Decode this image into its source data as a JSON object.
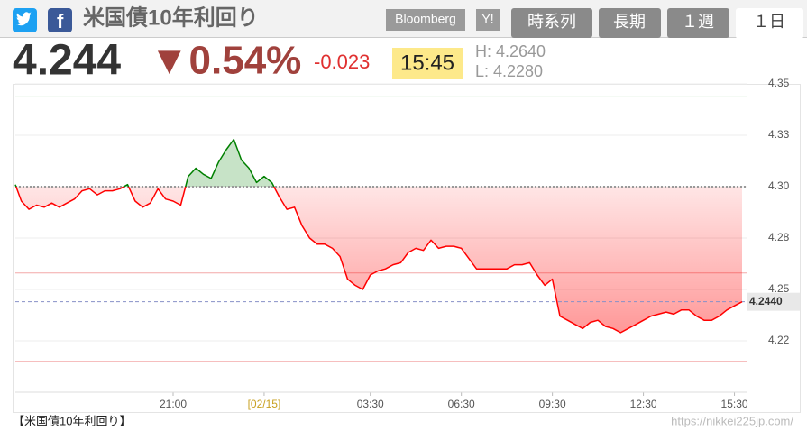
{
  "header": {
    "title": "米国債10年利回り",
    "source_badge": "Bloomberg",
    "yahoo_badge": "Y!",
    "tabs": [
      "時系列",
      "長期",
      "１週",
      "１日"
    ]
  },
  "quote": {
    "price": "4.244",
    "change_pct": "▼0.54%",
    "change": "-0.023",
    "time": "15:45",
    "high": "H: 4.2640",
    "low": "L: 4.2280"
  },
  "chart_data": {
    "type": "line",
    "color": "#ff0000",
    "color_above": "#008000",
    "grid": true,
    "x": [
      -8.2,
      -8,
      -7.75,
      -7.5,
      -7.25,
      -7,
      -6.75,
      -6.5,
      -6.25,
      -6,
      -5.75,
      -5.5,
      -5.25,
      -5,
      -4.75,
      -4.5,
      -4.25,
      -4,
      -3.75,
      -3.5,
      -3.25,
      -3,
      -2.75,
      -2.5,
      -2.25,
      -2,
      -1.75,
      -1.5,
      -1.25,
      -1,
      -0.75,
      -0.5,
      -0.25,
      0,
      0.25,
      0.5,
      0.75,
      1,
      1.25,
      1.5,
      1.75,
      2,
      2.25,
      2.5,
      2.75,
      3,
      3.25,
      3.5,
      3.75,
      4,
      4.25,
      4.5,
      4.75,
      5,
      5.25,
      5.5,
      5.75,
      6,
      6.25,
      6.5,
      6.75,
      7,
      7.25,
      7.5,
      7.75,
      8,
      8.25,
      8.5,
      8.75,
      9,
      9.25,
      9.5,
      9.75,
      10,
      10.25,
      10.5,
      10.75,
      11,
      11.25,
      11.5,
      11.75,
      12,
      12.25,
      12.5,
      12.75,
      13,
      13.25,
      13.5,
      13.75,
      14,
      14.25,
      14.5,
      14.75,
      15,
      15.25,
      15.5,
      15.75
    ],
    "values": [
      4.301,
      4.293,
      4.289,
      4.291,
      4.29,
      4.292,
      4.29,
      4.292,
      4.294,
      4.298,
      4.299,
      4.296,
      4.298,
      4.298,
      4.299,
      4.301,
      4.293,
      4.29,
      4.292,
      4.299,
      4.294,
      4.293,
      4.291,
      4.305,
      4.309,
      4.306,
      4.304,
      4.312,
      4.318,
      4.323,
      4.313,
      4.309,
      4.302,
      4.305,
      4.302,
      4.295,
      4.289,
      4.29,
      4.281,
      4.275,
      4.272,
      4.272,
      4.27,
      4.266,
      4.255,
      4.252,
      4.25,
      4.257,
      4.259,
      4.26,
      4.262,
      4.263,
      4.268,
      4.27,
      4.269,
      4.274,
      4.27,
      4.271,
      4.271,
      4.27,
      4.265,
      4.26,
      4.26,
      4.26,
      4.26,
      4.26,
      4.262,
      4.262,
      4.263,
      4.257,
      4.252,
      4.255,
      4.237,
      4.235,
      4.233,
      4.231,
      4.234,
      4.235,
      4.232,
      4.231,
      4.229,
      4.231,
      4.233,
      4.235,
      4.237,
      4.238,
      4.239,
      4.238,
      4.24,
      4.24,
      4.237,
      4.235,
      4.235,
      4.237,
      4.24,
      4.242,
      4.244
    ],
    "base": 4.3,
    "last_value": {
      "value": 4.244,
      "label": "4.2440"
    },
    "ref_lines": [
      {
        "value": 4.344,
        "color": "#a8d8a8"
      },
      {
        "value": 4.258,
        "color": "#f4a8a8"
      },
      {
        "value": 4.215,
        "color": "#f4a8a8"
      }
    ],
    "xlim": [
      -8.2,
      15.9
    ],
    "xticks": [
      {
        "value": -3,
        "label": "21:00"
      },
      {
        "value": 0,
        "label": "[02/15]"
      },
      {
        "value": 3.5,
        "label": "03:30"
      },
      {
        "value": 6.5,
        "label": "06:30"
      },
      {
        "value": 9.5,
        "label": "09:30"
      },
      {
        "value": 12.5,
        "label": "12:30"
      },
      {
        "value": 15.5,
        "label": "15:30"
      }
    ],
    "ylim": [
      4.2,
      4.35
    ],
    "yticks": [
      4.35,
      {
        "value": 4.325,
        "label": "4.33"
      },
      {
        "value": 4.3,
        "label": "4.30"
      },
      {
        "value": 4.275,
        "label": "4.28"
      },
      4.25,
      {
        "value": 4.225,
        "label": "4.22"
      }
    ]
  },
  "footer": {
    "caption": "【米国債10年利回り】",
    "url": "https://nikkei225jp.com/"
  }
}
